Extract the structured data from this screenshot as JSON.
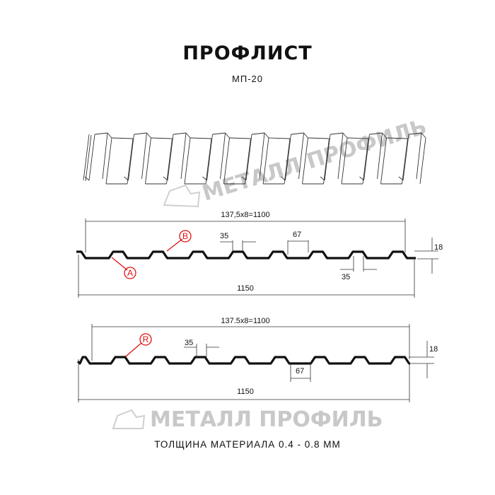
{
  "header": {
    "title": "ПРОФЛИСТ",
    "subtitle": "МП-20"
  },
  "watermark": {
    "text": "МЕТАЛЛ ПРОФИЛЬ"
  },
  "profile_1": {
    "pitch_label": "137,5x8=1100",
    "width_label": "1150",
    "crest_top_label": "35",
    "crest_top_label_2": "35",
    "valley_label": "67",
    "height_label": "18",
    "callouts": [
      "B",
      "A"
    ]
  },
  "profile_2": {
    "pitch_label": "137.5x8=1100",
    "width_label": "1150",
    "crest_top_label": "35",
    "valley_label": "67",
    "height_label": "18",
    "callouts": [
      "R"
    ]
  },
  "footer": {
    "thickness": "ТОЛЩИНА МАТЕРИАЛА 0.4 - 0.8 ММ"
  },
  "colors": {
    "callout": "#e01010",
    "profile": "#111111",
    "watermark": "#c8c8c8"
  }
}
